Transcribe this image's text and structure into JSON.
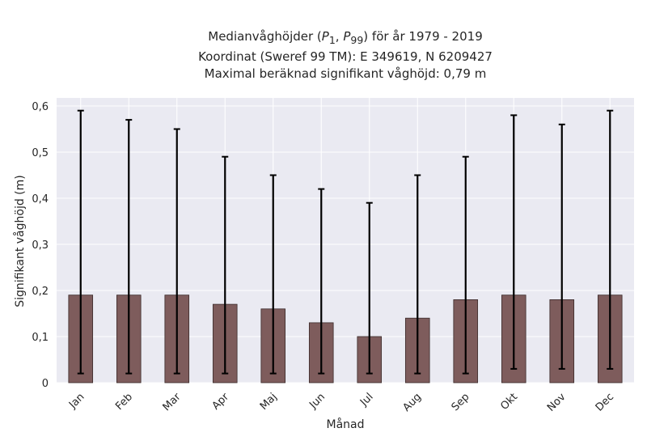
{
  "title": {
    "line1_prefix": "Medianvåghöjder (",
    "p1_symbol": "P",
    "p1_sub": "1",
    "comma": ", ",
    "p99_symbol": "P",
    "p99_sub": "99",
    "line1_suffix": ") för år 1979 - 2019",
    "line2": "Koordinat (Sweref 99 TM): E 349619, N 6209427",
    "line3": "Maximal beräknad signifikant våghöjd: 0,79 m"
  },
  "colors": {
    "plot_bg": "#eaeaf2",
    "grid": "#ffffff",
    "bar_fill": "#7e5c5c",
    "bar_edge": "#3a2a2a",
    "errorbar": "#000000"
  },
  "chart_data": {
    "type": "bar",
    "title": "Medianvåghöjder (P1, P99) för år 1979 - 2019 / Koordinat (Sweref 99 TM): E 349619, N 6209427 / Maximal beräknad signifikant våghöjd: 0,79 m",
    "xlabel": "Månad",
    "ylabel": "Signifikant våghöjd (m)",
    "categories": [
      "Jan",
      "Feb",
      "Mar",
      "Apr",
      "Maj",
      "Jun",
      "Jul",
      "Aug",
      "Sep",
      "Okt",
      "Nov",
      "Dec"
    ],
    "values": [
      0.19,
      0.19,
      0.19,
      0.17,
      0.16,
      0.13,
      0.1,
      0.14,
      0.18,
      0.19,
      0.18,
      0.19
    ],
    "err_low": [
      0.02,
      0.02,
      0.02,
      0.02,
      0.02,
      0.02,
      0.02,
      0.02,
      0.02,
      0.03,
      0.03,
      0.03
    ],
    "err_high": [
      0.59,
      0.57,
      0.55,
      0.49,
      0.45,
      0.42,
      0.39,
      0.45,
      0.49,
      0.58,
      0.56,
      0.59
    ],
    "ylim": [
      0,
      0.6
    ],
    "yticks": [
      0,
      0.1,
      0.2,
      0.3,
      0.4,
      0.5,
      0.6
    ],
    "ytick_labels": [
      "0",
      "0,1",
      "0,2",
      "0,3",
      "0,4",
      "0,5",
      "0,6"
    ],
    "grid": true,
    "legend": "none"
  }
}
